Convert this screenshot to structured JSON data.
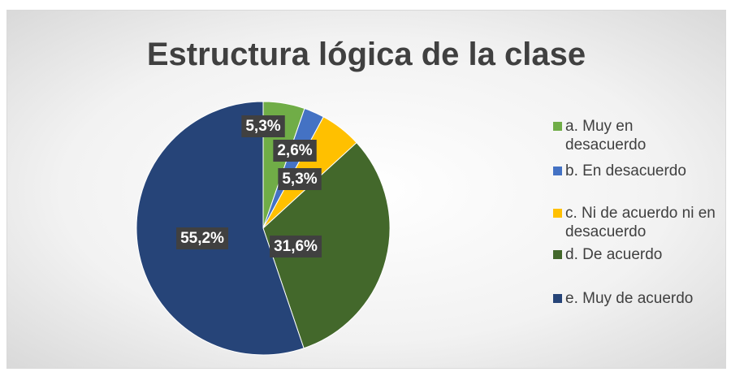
{
  "chart_data": {
    "type": "pie",
    "title": "Estructura lógica de la clase",
    "categories": [
      "a. Muy en desacuerdo",
      "b. En desacuerdo",
      "c. Ni de acuerdo ni en desacuerdo",
      "d. De acuerdo",
      "e. Muy de acuerdo"
    ],
    "values": [
      5.3,
      2.6,
      5.3,
      31.6,
      55.2
    ],
    "value_labels": [
      "5,3%",
      "2,6%",
      "5,3%",
      "31,6%",
      "55,2%"
    ],
    "colors": [
      "#70ad47",
      "#4472c4",
      "#ffc000",
      "#43682b",
      "#264478"
    ],
    "legend": "right"
  }
}
